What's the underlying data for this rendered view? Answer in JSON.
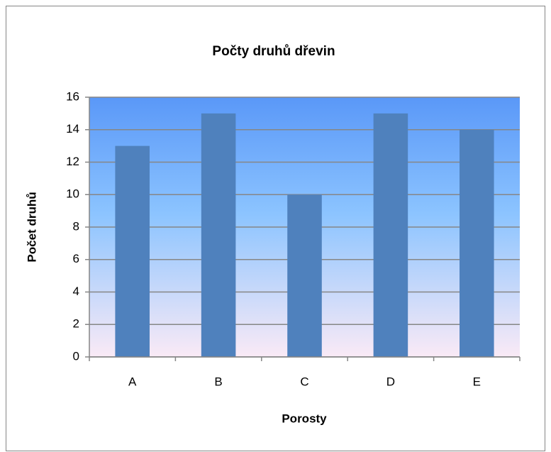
{
  "chart_data": {
    "type": "bar",
    "title": "Počty druhů  dřevin",
    "x_label": "Porosty",
    "y_label": "Počet druhů",
    "categories": [
      "A",
      "B",
      "C",
      "D",
      "E"
    ],
    "values": [
      13,
      15,
      10,
      15,
      14
    ],
    "color": "#4f81bd",
    "ylim": [
      0,
      16
    ],
    "yticks": [
      0,
      2,
      4,
      6,
      8,
      10,
      12,
      14,
      16
    ],
    "grid": true
  }
}
